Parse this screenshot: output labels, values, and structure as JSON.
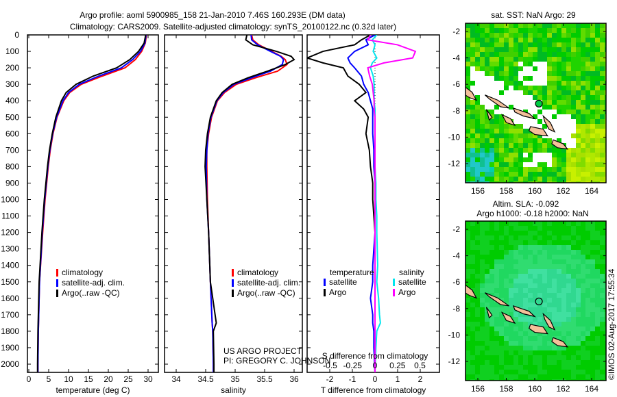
{
  "title": {
    "line1": "Argo profile: aoml 5900985_158 21-Jan-2010 7.46S 160.293E (DM data)",
    "line2": "Climatology: CARS2009. Satellite-adjusted climatology: synTS_20100122.nc (0.32d later)"
  },
  "credits": {
    "project": "US ARGO PROJECT",
    "pi": "PI: GREGORY C. JOHNSON",
    "imos": "©IMOS 02-Aug-2017 17:55:34"
  },
  "colors": {
    "climatology": "#ff0000",
    "satellite": "#0000ff",
    "argo": "#000000",
    "sal_satellite": "#00e5ee",
    "sal_argo": "#ff00ff"
  },
  "chart_data": [
    {
      "type": "line",
      "id": "temperature",
      "xlabel": "temperature (deg C)",
      "ylabel": "",
      "xlim": [
        -2,
        31.5
      ],
      "ylim": [
        2050,
        0
      ],
      "xticks": [
        "0",
        "5",
        "10",
        "15",
        "20",
        "25",
        "30"
      ],
      "yticks": [
        "0",
        "100",
        "200",
        "300",
        "400",
        "500",
        "600",
        "700",
        "800",
        "900",
        "1000",
        "1100",
        "1200",
        "1300",
        "1400",
        "1500",
        "1600",
        "1700",
        "1800",
        "1900",
        "2000"
      ],
      "legend": [
        "climatology",
        "satellite-adj. clim.",
        "Argo(..raw -QC)"
      ],
      "depth": [
        0,
        50,
        100,
        150,
        200,
        250,
        300,
        350,
        400,
        500,
        600,
        700,
        800,
        1000,
        1200,
        1500,
        1800,
        2000,
        2050
      ],
      "series": [
        {
          "name": "climatology",
          "values": [
            29.6,
            29.3,
            28.4,
            26.8,
            24.2,
            18.5,
            13.2,
            10.3,
            8.8,
            7.1,
            6.1,
            5.4,
            4.9,
            4.1,
            3.5,
            2.7,
            2.4,
            2.3,
            2.3
          ]
        },
        {
          "name": "satellite-adj. clim.",
          "values": [
            29.5,
            29.2,
            28.1,
            26.1,
            23.3,
            17.6,
            12.7,
            10.0,
            8.6,
            7.0,
            6.0,
            5.3,
            4.8,
            4.0,
            3.4,
            2.7,
            2.4,
            2.3,
            2.3
          ]
        },
        {
          "name": "Argo",
          "values": [
            29.4,
            29.0,
            27.6,
            25.4,
            22.1,
            16.2,
            11.9,
            9.4,
            8.2,
            6.8,
            5.9,
            5.2,
            4.7,
            3.9,
            3.3,
            2.6,
            2.3,
            2.2,
            2.2
          ]
        }
      ]
    },
    {
      "type": "line",
      "id": "salinity",
      "xlabel": "salinity",
      "xlim": [
        33.8,
        36.05
      ],
      "ylim": [
        2050,
        0
      ],
      "xticks": [
        "34",
        "34.5",
        "35",
        "35.5",
        "36"
      ],
      "legend": [
        "climatology",
        "satellite-adj. clim.",
        " Argo(..raw -QC)"
      ],
      "depth": [
        0,
        30,
        60,
        100,
        130,
        150,
        180,
        220,
        260,
        300,
        350,
        400,
        500,
        600,
        700,
        800,
        1000,
        1200,
        1500,
        1750,
        1800,
        2000,
        2050
      ],
      "series": [
        {
          "name": "climatology",
          "values": [
            35.28,
            35.3,
            35.4,
            35.62,
            35.78,
            35.85,
            35.88,
            35.72,
            35.35,
            35.02,
            34.82,
            34.7,
            34.6,
            34.55,
            34.52,
            34.52,
            34.53,
            34.55,
            34.58,
            34.61,
            34.62,
            34.63,
            34.63
          ]
        },
        {
          "name": "satellite-adj. clim.",
          "values": [
            35.27,
            35.28,
            35.38,
            35.6,
            35.77,
            35.82,
            35.8,
            35.6,
            35.28,
            34.98,
            34.8,
            34.69,
            34.59,
            34.54,
            34.52,
            34.51,
            34.52,
            34.55,
            34.58,
            34.61,
            34.62,
            34.63,
            34.63
          ]
        },
        {
          "name": "Argo",
          "values": [
            35.2,
            35.18,
            35.3,
            35.7,
            35.95,
            36.0,
            35.85,
            35.55,
            35.22,
            34.95,
            34.78,
            34.68,
            34.58,
            34.53,
            34.5,
            34.49,
            34.52,
            34.55,
            34.58,
            34.68,
            34.63,
            34.64,
            34.64
          ]
        }
      ]
    },
    {
      "type": "line",
      "id": "differences",
      "xlabel": "T difference from climatology",
      "x2label": "S difference from climatology",
      "xlim": [
        -2.1,
        2.6
      ],
      "ylim": [
        2050,
        0
      ],
      "xticks": [
        "-2",
        "-1",
        "0",
        "1",
        "2"
      ],
      "x2ticks": [
        "-0.5",
        "-0.25",
        "0",
        "0.25",
        "0.5"
      ],
      "legend": {
        "temperature_title": "temperature",
        "salinity_title": "salinity",
        "satellite": "satellite",
        "argo": "Argo"
      },
      "depth": [
        0,
        30,
        60,
        100,
        140,
        170,
        200,
        250,
        300,
        350,
        400,
        450,
        500,
        600,
        700,
        800,
        900,
        1000,
        1100,
        1200,
        1400,
        1500,
        1600,
        1700,
        1750,
        1800,
        1900,
        2050
      ],
      "series": [
        {
          "name": "T satellite",
          "values": [
            0,
            -0.4,
            -0.3,
            -0.9,
            -1.2,
            -1.1,
            -0.9,
            -0.6,
            -0.5,
            -0.3,
            -0.2,
            -0.1,
            -0.1,
            -0.1,
            -0.05,
            -0.05,
            0,
            0,
            0,
            0,
            -0.1,
            -0.1,
            -0.2,
            -0.1,
            -0.1,
            -0.05,
            -0.05,
            0
          ]
        },
        {
          "name": "T Argo",
          "values": [
            -0.2,
            -0.6,
            -0.9,
            -2.3,
            -3,
            -2.3,
            -1.4,
            -1.2,
            -0.7,
            -0.4,
            -0.9,
            -0.5,
            -0.3,
            -0.4,
            -0.25,
            -0.2,
            -0.1,
            -0.1,
            -0.05,
            0,
            0,
            0,
            0,
            0,
            0,
            0,
            0,
            0
          ]
        },
        {
          "name": "S satellite",
          "values": [
            0.02,
            -0.03,
            0,
            -0.02,
            0.02,
            -0.03,
            -0.05,
            -0.02,
            -0.01,
            -0.01,
            -0.01,
            0,
            0,
            0,
            0,
            0,
            0.01,
            0.01,
            0.02,
            0.02,
            0.03,
            0.02,
            0.04,
            0.05,
            0.06,
            0.02,
            0.01,
            0
          ]
        },
        {
          "name": "S Argo",
          "values": [
            -0.05,
            -0.08,
            0.25,
            0.45,
            0.42,
            0.1,
            -0.08,
            -0.06,
            -0.03,
            -0.02,
            -0.01,
            -0.01,
            0,
            0,
            0,
            0,
            0,
            0,
            0,
            0,
            0,
            0,
            0,
            0,
            0,
            0,
            0,
            0
          ]
        }
      ]
    },
    {
      "type": "heatmap",
      "id": "sst-map",
      "title": "sat. SST: NaN Argo: 29",
      "xlim": [
        155.1,
        165.5
      ],
      "ylim": [
        -13.5,
        -1.4
      ],
      "xticks": [
        "156",
        "158",
        "160",
        "162",
        "164"
      ],
      "yticks": [
        "-2",
        "-4",
        "-6",
        "-8",
        "-10",
        "-12"
      ],
      "argo_position": [
        160.293,
        -7.46
      ]
    },
    {
      "type": "heatmap",
      "id": "sla-map",
      "title": "Altim. SLA: -0.092",
      "subtitle": "Argo h1000: -0.18 h2000: NaN",
      "xlim": [
        155.1,
        165.5
      ],
      "ylim": [
        -13.5,
        -1.4
      ],
      "xticks": [
        "156",
        "158",
        "160",
        "162",
        "164"
      ],
      "yticks": [
        "-2",
        "-4",
        "-6",
        "-8",
        "-10",
        "-12"
      ],
      "argo_position": [
        160.293,
        -7.46
      ]
    }
  ]
}
